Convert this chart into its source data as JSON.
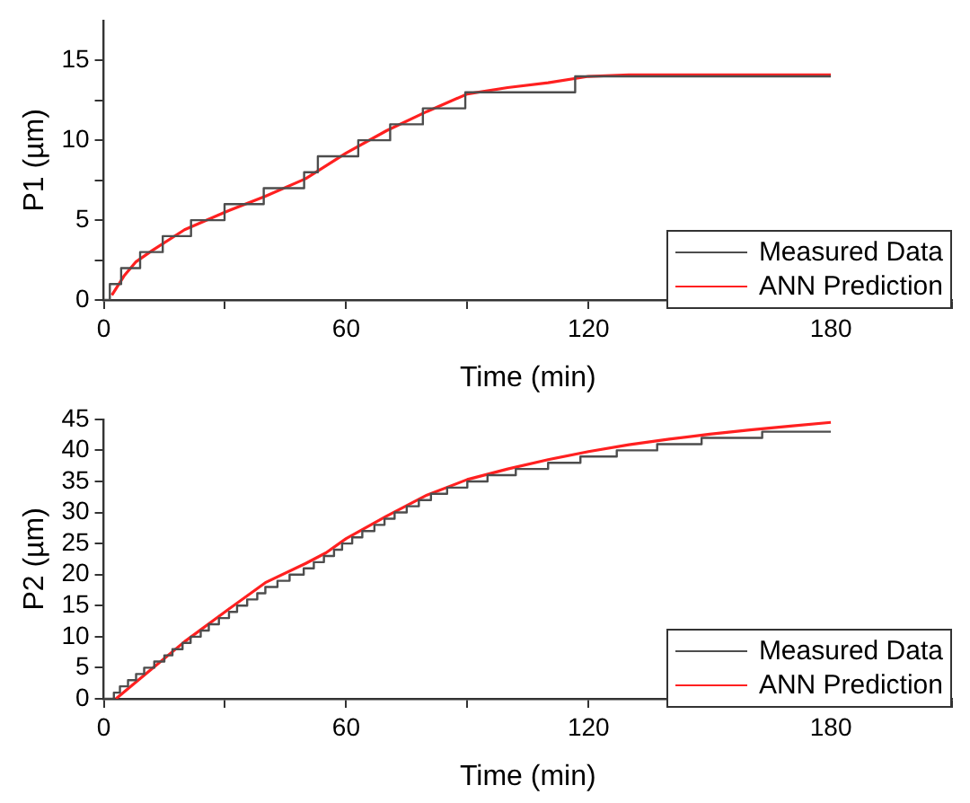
{
  "chart_data": [
    {
      "type": "line",
      "xlabel": "Time (min)",
      "ylabel": "P1 (µm)",
      "xlim": [
        0,
        210
      ],
      "xticks": [
        0,
        {
          "value": 30,
          "label": null
        },
        60,
        {
          "value": 90,
          "label": null
        },
        120,
        {
          "value": 150,
          "label": null
        },
        180,
        {
          "value": 210,
          "label": null
        }
      ],
      "ylim": [
        0,
        17.5
      ],
      "yticks": [
        0,
        {
          "value": 2.5,
          "label": null
        },
        5,
        {
          "value": 7.5,
          "label": null
        },
        10,
        {
          "value": 12.5,
          "label": null
        },
        15
      ],
      "grid": false,
      "legend": "bottom right",
      "series": [
        {
          "name": "Measured Data",
          "color": "#4d4d4d",
          "type": "step",
          "x": [
            0,
            1.5,
            4.3,
            9,
            14.6,
            21.6,
            29.9,
            39.6,
            49.6,
            53,
            63,
            70.9,
            79,
            89.5,
            116.7,
            180
          ],
          "values": [
            0,
            1,
            2,
            3,
            4,
            5,
            6,
            7,
            8,
            9,
            10,
            11,
            12,
            13,
            14,
            14
          ]
        },
        {
          "name": "ANN Prediction",
          "color": "#ff2020",
          "type": "line",
          "x": [
            2,
            5,
            8,
            12,
            20,
            30,
            40,
            50,
            60,
            70,
            80,
            90,
            100,
            110,
            120,
            130,
            180
          ],
          "values": [
            0.3,
            1.5,
            2.4,
            3.1,
            4.4,
            5.5,
            6.5,
            7.6,
            9.2,
            10.6,
            11.8,
            12.9,
            13.3,
            13.6,
            14,
            14.1,
            14.1
          ]
        }
      ]
    },
    {
      "type": "line",
      "xlabel": "Time (min)",
      "ylabel": "P2 (µm)",
      "xlim": [
        0,
        210
      ],
      "xticks": [
        0,
        {
          "value": 30,
          "label": null
        },
        60,
        {
          "value": 90,
          "label": null
        },
        120,
        {
          "value": 150,
          "label": null
        },
        180,
        {
          "value": 210,
          "label": null
        }
      ],
      "ylim": [
        0,
        45
      ],
      "yticks": [
        0,
        5,
        10,
        15,
        20,
        25,
        30,
        35,
        40,
        45
      ],
      "grid": false,
      "legend": "bottom right",
      "series": [
        {
          "name": "Measured Data",
          "color": "#4d4d4d",
          "type": "step",
          "x": [
            0,
            2.5,
            4,
            6,
            8,
            10,
            12.5,
            15,
            17,
            19.5,
            21.5,
            24,
            26,
            28.5,
            31,
            33,
            35.5,
            38,
            40,
            43,
            46,
            49.5,
            52,
            54.5,
            57,
            59,
            61.5,
            64,
            67,
            69.5,
            72,
            75,
            78,
            81,
            85,
            90,
            95,
            102,
            110,
            118,
            127,
            137,
            148,
            163,
            180
          ],
          "values": [
            0,
            1,
            2,
            3,
            4,
            5,
            6,
            7,
            8,
            9,
            10,
            11,
            12,
            13,
            14,
            15,
            16,
            17,
            18,
            19,
            20,
            21,
            22,
            23,
            24,
            25,
            26,
            27,
            28,
            29,
            30,
            31,
            32,
            33,
            34,
            35,
            36,
            37,
            38,
            39,
            40,
            41,
            42,
            43,
            43
          ]
        },
        {
          "name": "ANN Prediction",
          "color": "#ff2020",
          "type": "line",
          "x": [
            3,
            10,
            20,
            30,
            40,
            50,
            55,
            60,
            70,
            80,
            90,
            100,
            110,
            120,
            130,
            140,
            150,
            160,
            170,
            180
          ],
          "values": [
            0,
            3.8,
            9.2,
            14,
            18.7,
            21.8,
            23.5,
            25.8,
            29.4,
            32.8,
            35.3,
            37,
            38.5,
            39.8,
            40.9,
            41.8,
            42.6,
            43.3,
            43.9,
            44.5
          ]
        }
      ]
    }
  ]
}
